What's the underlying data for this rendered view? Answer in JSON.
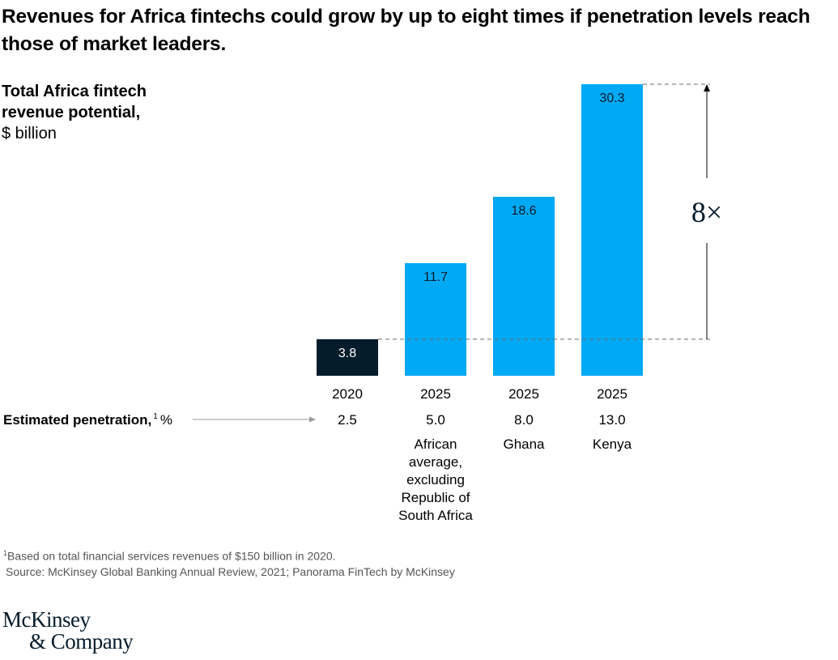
{
  "chart_data": {
    "type": "bar",
    "title": "Revenues for Africa fintechs could grow by up to eight times if penetration levels reach those of market leaders.",
    "ylabel_bold": "Total Africa fintech revenue potential,",
    "ylabel_unit": "$ billion",
    "categories": [
      "2020",
      "2025",
      "2025",
      "2025"
    ],
    "values": [
      3.8,
      11.7,
      18.6,
      30.3
    ],
    "value_labels": [
      "3.8",
      "11.7",
      "18.6",
      "30.3"
    ],
    "bar_colors": [
      "#051c2c",
      "#00a9f4",
      "#00a9f4",
      "#00a9f4"
    ],
    "ylim": [
      0,
      30.3
    ],
    "penetration_label": "Estimated penetration,",
    "penetration_sup": "1",
    "penetration_unit": "%",
    "penetration": [
      "2.5",
      "5.0",
      "8.0",
      "13.0"
    ],
    "descriptions": [
      [],
      [
        "African",
        "average,",
        "excluding",
        "Republic of",
        "South Africa"
      ],
      [
        "Ghana"
      ],
      [
        "Kenya"
      ]
    ],
    "annotation": "8×"
  },
  "footnote": {
    "sup": "1",
    "note": "Based on total financial services revenues of $150 billion in 2020.",
    "source": "Source: McKinsey Global Banking Annual Review, 2021; Panorama FinTech by McKinsey"
  },
  "logo": {
    "line1": "McKinsey",
    "line2": "& Company"
  }
}
